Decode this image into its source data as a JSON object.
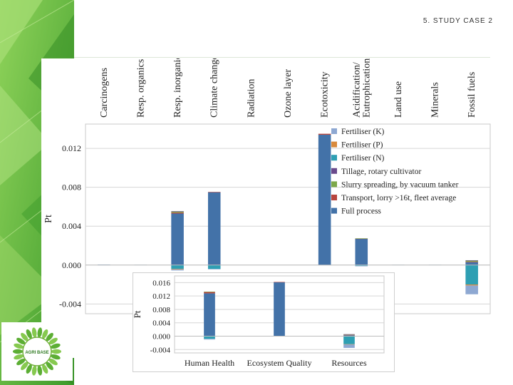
{
  "header": {
    "slide_label": "5. STUDY CASE 2"
  },
  "logo": {
    "text": "AGRI BASE"
  },
  "colors": {
    "Fertiliser (K)": "#8ea8d2",
    "Fertiliser (P)": "#d98a3c",
    "Fertiliser (N)": "#2e9fb3",
    "Tillage, rotary cultivator": "#6a4a8c",
    "Slurry spreading, by vacuum tanker": "#7da84a",
    "Transport, lorry >16t, fleet average": "#b8453e",
    "Full process": "#4372a8"
  },
  "chart_data": [
    {
      "type": "bar",
      "stacked": true,
      "categories": [
        "Carcinogens",
        "Resp. organics",
        "Resp. inorganics",
        "Climate change",
        "Radiation",
        "Ozone layer",
        "Ecotoxicity",
        "Acidification/ Eutrophication",
        "Land use",
        "Minerals",
        "Fossil fuels"
      ],
      "ylabel": "Pt",
      "ylim": [
        -0.005,
        0.0145
      ],
      "yticks": [
        -0.004,
        0.0,
        0.004,
        0.008,
        0.012
      ],
      "ytick_labels": [
        "-0.004",
        "0.000",
        "0.004",
        "0.008",
        "0.012"
      ],
      "legend_position": "top-right",
      "legend": [
        "Fertiliser (K)",
        "Fertiliser (P)",
        "Fertiliser (N)",
        "Tillage, rotary cultivator",
        "Slurry spreading, by vacuum tanker",
        "Transport, lorry >16t, fleet average",
        "Full process"
      ],
      "series": [
        {
          "name": "Full process",
          "values": [
            5e-05,
            3e-05,
            0.0053,
            0.0075,
            0.0,
            0.0,
            0.0134,
            0.0027,
            3e-05,
            3e-05,
            0.0003
          ]
        },
        {
          "name": "Transport, lorry >16t, fleet average",
          "values": [
            0,
            0,
            0.0001,
            2e-05,
            0,
            0,
            0.0001,
            3e-05,
            0,
            0,
            5e-05
          ]
        },
        {
          "name": "Slurry spreading, by vacuum tanker",
          "values": [
            0,
            0,
            0.0001,
            0,
            0,
            0,
            0,
            2e-05,
            0,
            0,
            0.0001
          ]
        },
        {
          "name": "Tillage, rotary cultivator",
          "values": [
            0,
            0,
            5e-05,
            0,
            0,
            0,
            0,
            0,
            0,
            0,
            5e-05
          ]
        },
        {
          "name": "Fertiliser (N)",
          "values": [
            0,
            0,
            -0.0004,
            -0.0004,
            0,
            0,
            0,
            -8e-05,
            0,
            0,
            -0.002
          ]
        },
        {
          "name": "Fertiliser (P)",
          "values": [
            0,
            0,
            -5e-05,
            0,
            0,
            0,
            0,
            0,
            0,
            0,
            -0.0001
          ]
        },
        {
          "name": "Fertiliser (K)",
          "values": [
            0,
            0,
            -0.0001,
            -2e-05,
            0,
            0,
            0,
            -2e-05,
            0,
            0,
            -0.0009
          ]
        }
      ]
    },
    {
      "type": "bar",
      "stacked": true,
      "categories": [
        "Human Health",
        "Ecosystem Quality",
        "Resources"
      ],
      "ylabel": "Pt",
      "ylim": [
        -0.005,
        0.018
      ],
      "yticks": [
        -0.004,
        0.0,
        0.004,
        0.008,
        0.012,
        0.016
      ],
      "ytick_labels": [
        "-0.004",
        "0.000",
        "0.004",
        "0.008",
        "0.012",
        "0.016"
      ],
      "series": [
        {
          "name": "Full process",
          "values": [
            0.0128,
            0.0161,
            0.0003
          ]
        },
        {
          "name": "Transport, lorry >16t, fleet average",
          "values": [
            0.0004,
            0.0001,
            0.0001
          ]
        },
        {
          "name": "Slurry spreading, by vacuum tanker",
          "values": [
            0.0001,
            0,
            0.0001
          ]
        },
        {
          "name": "Tillage, rotary cultivator",
          "values": [
            0,
            0,
            0.0001
          ]
        },
        {
          "name": "Fertiliser (N)",
          "values": [
            -0.0008,
            0,
            -0.0024
          ]
        },
        {
          "name": "Fertiliser (P)",
          "values": [
            0,
            0,
            -0.0001
          ]
        },
        {
          "name": "Fertiliser (K)",
          "values": [
            -0.0002,
            0,
            -0.001
          ]
        }
      ]
    }
  ]
}
